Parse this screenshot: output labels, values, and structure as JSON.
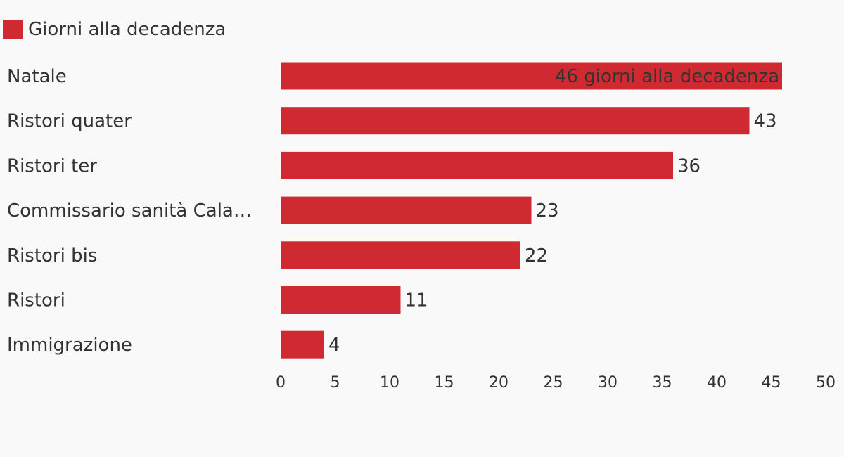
{
  "chart_data": {
    "type": "bar",
    "orientation": "horizontal",
    "legend": {
      "position": "top-left",
      "label": "Giorni alla decadenza",
      "color": "#cf2a31"
    },
    "categories": [
      "Natale",
      "Ristori quater",
      "Ristori ter",
      "Commissario sanità Cala…",
      "Ristori bis",
      "Ristori",
      "Immigrazione"
    ],
    "values": [
      46,
      43,
      36,
      23,
      22,
      11,
      4
    ],
    "value_labels": [
      "46 giorni alla decadenza",
      "43",
      "36",
      "23",
      "22",
      "11",
      "4"
    ],
    "xlim": [
      0,
      50
    ],
    "xticks": [
      "0",
      "5",
      "10",
      "15",
      "20",
      "25",
      "30",
      "35",
      "40",
      "45",
      "50"
    ],
    "grid": false
  }
}
